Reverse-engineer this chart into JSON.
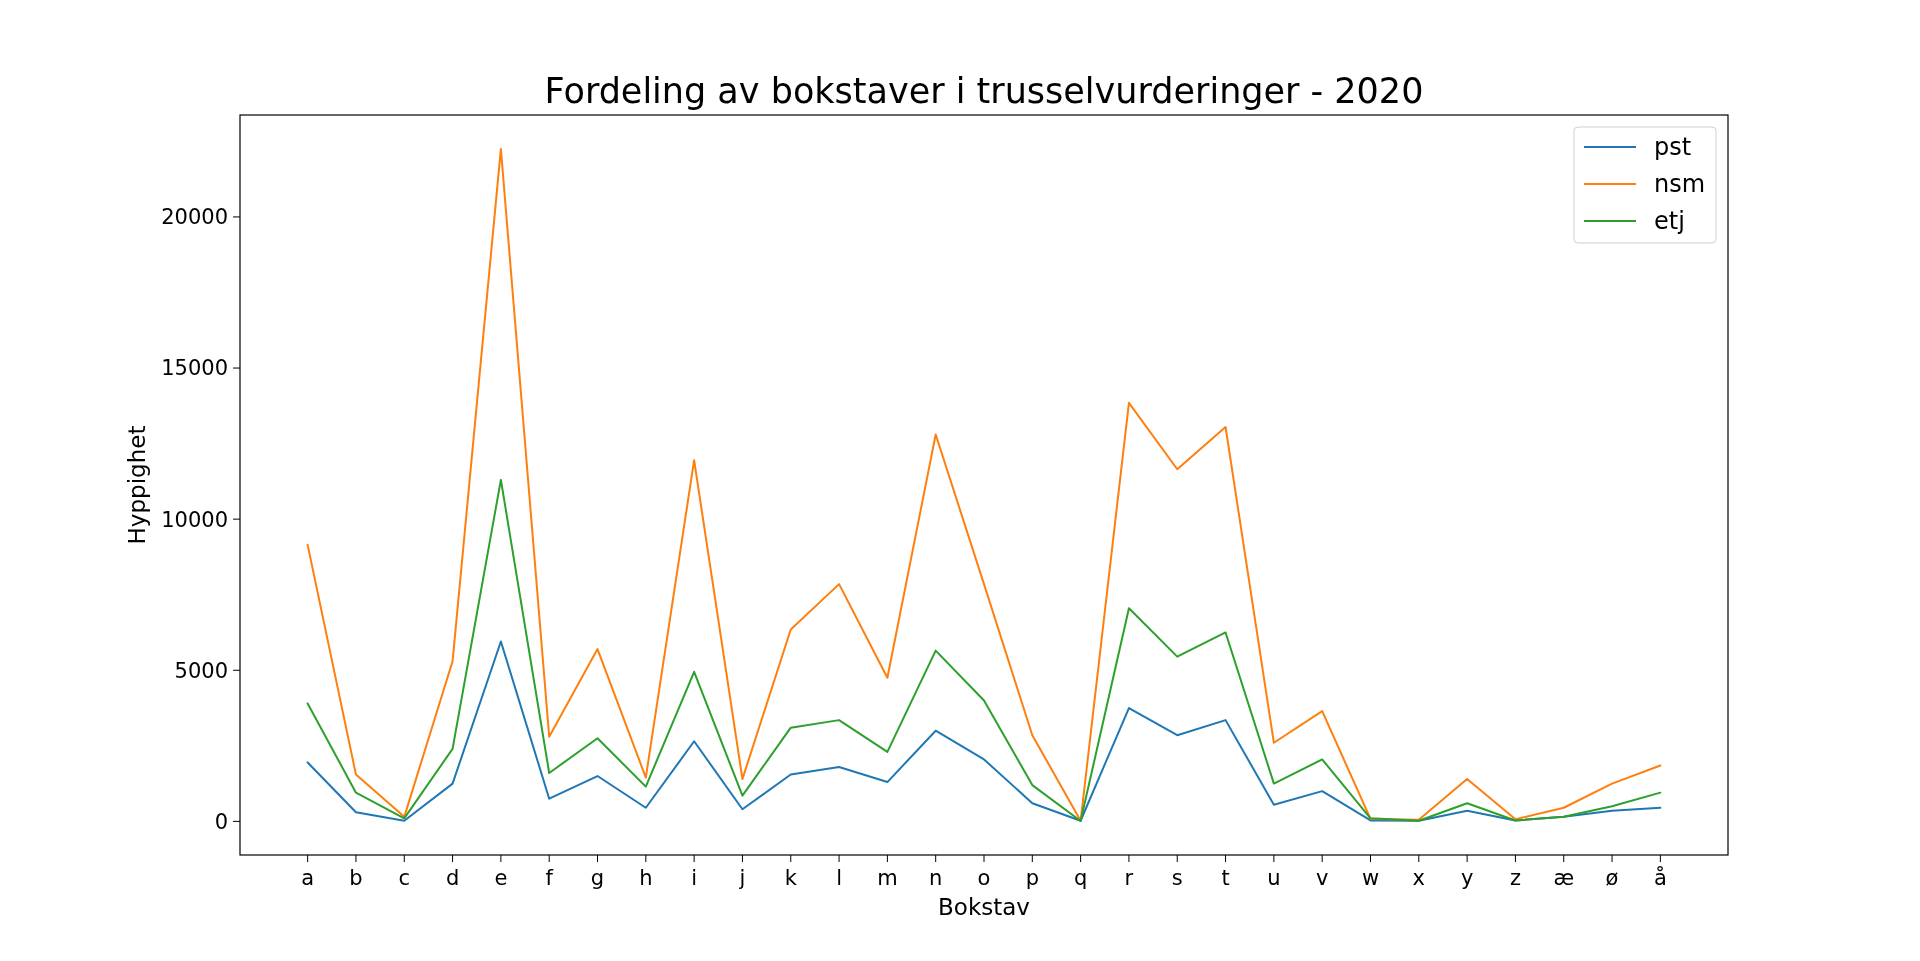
{
  "chart_data": {
    "type": "line",
    "title": "Fordeling av bokstaver i trusselvurderinger - 2020",
    "xlabel": "Bokstav",
    "ylabel": "Hyppighet",
    "categories": [
      "a",
      "b",
      "c",
      "d",
      "e",
      "f",
      "g",
      "h",
      "i",
      "j",
      "k",
      "l",
      "m",
      "n",
      "o",
      "p",
      "q",
      "r",
      "s",
      "t",
      "u",
      "v",
      "w",
      "x",
      "y",
      "z",
      "æ",
      "ø",
      "å"
    ],
    "series": [
      {
        "name": "pst",
        "color": "#1f77b4",
        "values": [
          1950,
          300,
          20,
          1250,
          5950,
          750,
          1500,
          450,
          2650,
          400,
          1550,
          1800,
          1300,
          3000,
          2050,
          600,
          20,
          3750,
          2850,
          3350,
          550,
          1000,
          30,
          20,
          350,
          30,
          150,
          350,
          450
        ]
      },
      {
        "name": "nsm",
        "color": "#ff7f0e",
        "values": [
          9150,
          1550,
          150,
          5300,
          22250,
          2800,
          5700,
          1450,
          11950,
          1400,
          6350,
          7850,
          4750,
          12800,
          7850,
          2850,
          20,
          13850,
          11650,
          13050,
          2600,
          3650,
          80,
          50,
          1400,
          70,
          450,
          1250,
          1850
        ]
      },
      {
        "name": "etj",
        "color": "#2ca02c",
        "values": [
          3900,
          950,
          100,
          2400,
          11300,
          1600,
          2750,
          1150,
          4950,
          850,
          3100,
          3350,
          2300,
          5650,
          4000,
          1200,
          10,
          7050,
          5450,
          6250,
          1250,
          2050,
          100,
          20,
          600,
          30,
          150,
          500,
          950
        ]
      }
    ],
    "ylim": [
      -1113,
      23373
    ],
    "yticks": [
      0,
      5000,
      10000,
      15000,
      20000
    ],
    "legend": "top right",
    "grid": false,
    "line_style": "solid",
    "marker": "none"
  }
}
